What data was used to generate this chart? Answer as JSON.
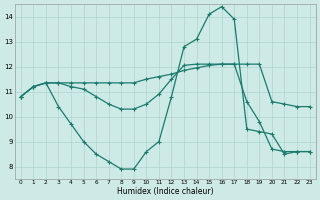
{
  "bg_color": "#ceeae6",
  "grid_color": "#aed4d0",
  "line_color": "#1a7a6e",
  "xlabel": "Humidex (Indice chaleur)",
  "xlim": [
    -0.5,
    23.5
  ],
  "ylim": [
    7.5,
    14.5
  ],
  "yticks": [
    8,
    9,
    10,
    11,
    12,
    13,
    14
  ],
  "xticks": [
    0,
    1,
    2,
    3,
    4,
    5,
    6,
    7,
    8,
    9,
    10,
    11,
    12,
    13,
    14,
    15,
    16,
    17,
    18,
    19,
    20,
    21,
    22,
    23
  ],
  "line1_x": [
    0,
    1,
    2,
    3,
    4,
    5,
    6,
    7,
    8,
    9,
    10,
    11,
    12,
    13,
    14,
    15,
    16,
    17,
    18,
    19,
    20,
    21,
    22,
    23
  ],
  "line1_y": [
    10.8,
    11.2,
    11.35,
    11.35,
    11.35,
    11.35,
    11.35,
    11.35,
    11.35,
    11.35,
    11.5,
    11.6,
    11.7,
    11.85,
    11.95,
    12.05,
    12.1,
    12.1,
    12.1,
    12.1,
    10.6,
    10.5,
    10.4,
    10.4
  ],
  "line2_x": [
    0,
    1,
    2,
    3,
    4,
    5,
    6,
    7,
    8,
    9,
    10,
    11,
    12,
    13,
    14,
    15,
    16,
    17,
    18,
    19,
    20,
    21,
    22,
    23
  ],
  "line2_y": [
    10.8,
    11.2,
    11.35,
    11.35,
    11.2,
    11.1,
    10.8,
    10.5,
    10.3,
    10.3,
    10.5,
    10.9,
    11.5,
    12.05,
    12.1,
    12.1,
    12.1,
    12.1,
    10.6,
    9.8,
    8.7,
    8.6,
    8.6,
    8.6
  ],
  "line3_x": [
    0,
    1,
    2,
    3,
    4,
    5,
    6,
    7,
    8,
    9,
    10,
    11,
    12,
    13,
    14,
    15,
    16,
    17,
    18,
    19,
    20,
    21,
    22,
    23
  ],
  "line3_y": [
    10.8,
    11.2,
    11.35,
    10.4,
    9.7,
    9.0,
    8.5,
    8.2,
    7.9,
    7.9,
    8.6,
    9.0,
    10.8,
    12.8,
    13.1,
    14.1,
    14.4,
    13.9,
    9.5,
    9.4,
    9.3,
    8.5,
    8.6,
    8.6
  ]
}
